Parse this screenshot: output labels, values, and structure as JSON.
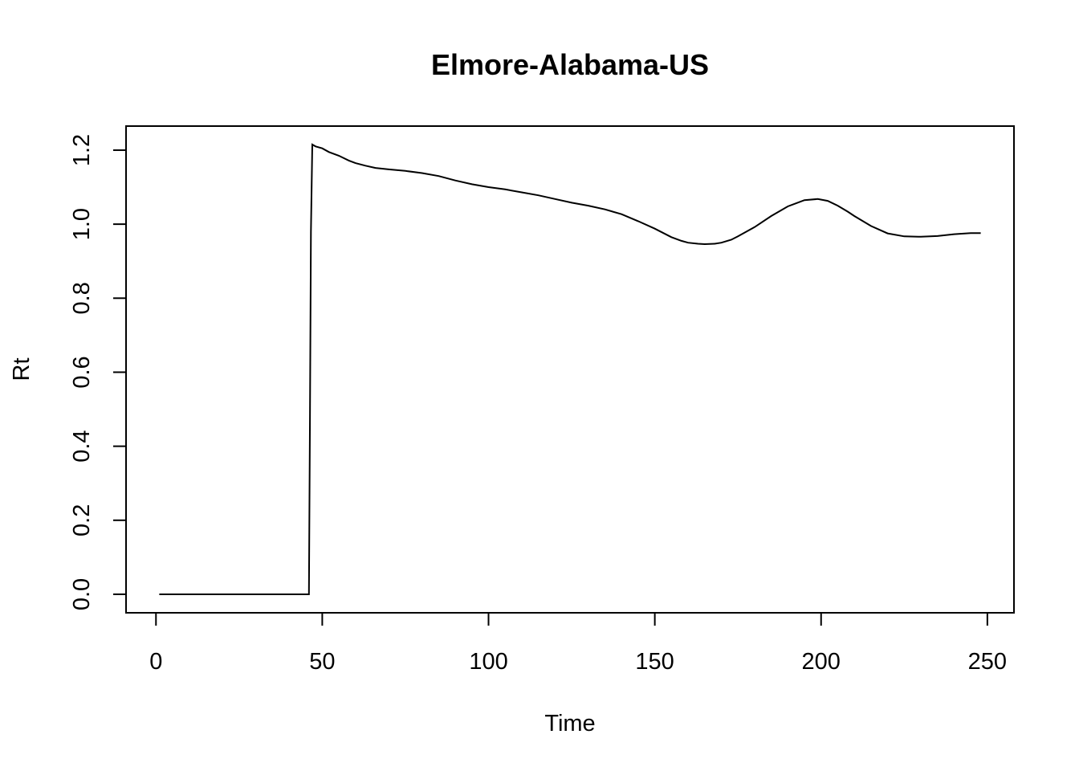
{
  "chart_data": {
    "type": "line",
    "title": "Elmore-Alabama-US",
    "xlabel": "Time",
    "ylabel": "Rt",
    "xlim": [
      -9,
      258
    ],
    "ylim": [
      -0.05,
      1.265
    ],
    "xticks": [
      0,
      50,
      100,
      150,
      200,
      250
    ],
    "yticks": [
      0.0,
      0.2,
      0.4,
      0.6,
      0.8,
      1.0,
      1.2
    ],
    "xtick_labels": [
      "0",
      "50",
      "100",
      "150",
      "200",
      "250"
    ],
    "ytick_labels": [
      "0.0",
      "0.2",
      "0.4",
      "0.6",
      "0.8",
      "1.0",
      "1.2"
    ],
    "grid": false,
    "line_color": "#000000",
    "series": [
      {
        "x": [
          1,
          10,
          20,
          30,
          40,
          46,
          46.3,
          46.6,
          47,
          48,
          50,
          52,
          55,
          58,
          60,
          63,
          66,
          70,
          75,
          80,
          85,
          90,
          95,
          100,
          105,
          110,
          115,
          120,
          125,
          130,
          135,
          140,
          145,
          150,
          155,
          158,
          160,
          163,
          165,
          168,
          170,
          173,
          175,
          180,
          185,
          190,
          195,
          199,
          202,
          205,
          208,
          210,
          215,
          220,
          225,
          230,
          235,
          240,
          245,
          248
        ],
        "y": [
          0,
          0,
          0,
          0,
          0,
          0,
          0.48,
          0.98,
          1.215,
          1.21,
          1.205,
          1.195,
          1.185,
          1.172,
          1.165,
          1.158,
          1.152,
          1.148,
          1.144,
          1.138,
          1.13,
          1.118,
          1.108,
          1.1,
          1.094,
          1.086,
          1.078,
          1.068,
          1.058,
          1.05,
          1.04,
          1.027,
          1.008,
          0.988,
          0.965,
          0.955,
          0.95,
          0.947,
          0.946,
          0.947,
          0.95,
          0.958,
          0.967,
          0.992,
          1.022,
          1.048,
          1.065,
          1.068,
          1.063,
          1.05,
          1.034,
          1.022,
          0.995,
          0.975,
          0.967,
          0.966,
          0.968,
          0.973,
          0.976,
          0.976
        ]
      }
    ]
  }
}
